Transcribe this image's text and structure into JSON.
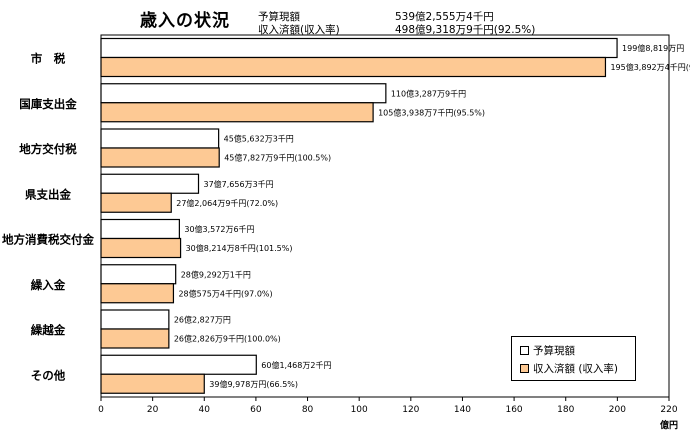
{
  "header": {
    "title": "歳入の状況",
    "budget_label": "予算現額",
    "budget_value": "539億2,555万4千円",
    "received_label": "収入済額(収入率)",
    "received_value": "498億9,318万9千円(92.5%)"
  },
  "legend": {
    "budget": "予算現額",
    "received": "収入済額 (収入率)"
  },
  "colors": {
    "budget_fill": "#ffffff",
    "received_fill": "#fdc994",
    "bar_stroke": "#000000"
  },
  "chart_data": {
    "type": "bar",
    "orientation": "horizontal",
    "xlabel": "億円",
    "xlim": [
      0,
      220
    ],
    "xticks": [
      0,
      20,
      40,
      60,
      80,
      100,
      120,
      140,
      160,
      180,
      200,
      220
    ],
    "grid": false,
    "legend_position": "bottom-right",
    "categories": [
      "市　税",
      "国庫支出金",
      "地方交付税",
      "県支出金",
      "地方消費税交付金",
      "繰入金",
      "繰越金",
      "その他"
    ],
    "series": [
      {
        "name": "予算現額",
        "values": [
          199.882,
          110.329,
          45.563,
          37.766,
          30.357,
          28.929,
          26.283,
          60.147
        ],
        "labels": [
          "199億8,819万円",
          "110億3,287万9千円",
          "45億5,632万3千円",
          "37億7,656万3千円",
          "30億3,572万6千円",
          "28億9,292万1千円",
          "26億2,827万円",
          "60億1,468万2千円"
        ]
      },
      {
        "name": "収入済額 (収入率)",
        "values": [
          195.389,
          105.394,
          45.783,
          27.206,
          30.821,
          28.058,
          26.283,
          39.998
        ],
        "labels": [
          "195億3,892万4千円(97.8%)",
          "105億3,938万7千円(95.5%)",
          "45億7,827万9千円(100.5%)",
          "27億2,064万9千円(72.0%)",
          "30億8,214万8千円(101.5%)",
          "28億575万4千円(97.0%)",
          "26億2,826万9千円(100.0%)",
          "39億9,978万円(66.5%)"
        ]
      }
    ]
  }
}
